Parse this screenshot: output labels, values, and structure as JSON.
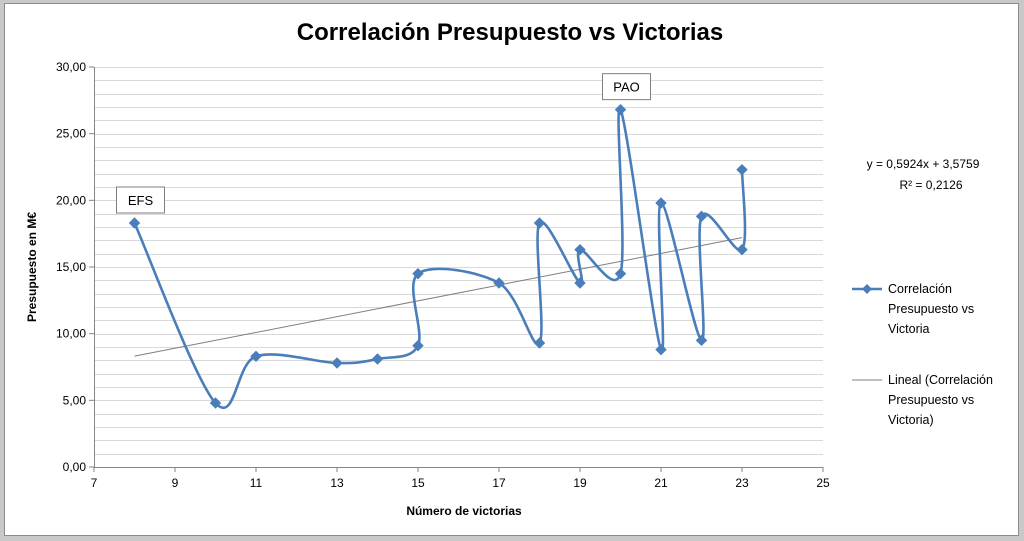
{
  "chart_data": {
    "type": "scatter",
    "title": "Correlación Presupuesto vs Victorias",
    "xlabel": "Número de victorias",
    "ylabel": "Presupuesto en M€",
    "xlim": [
      7,
      25
    ],
    "ylim": [
      0,
      30
    ],
    "x_ticks": [
      "7",
      "9",
      "11",
      "13",
      "15",
      "17",
      "19",
      "21",
      "23",
      "25"
    ],
    "y_ticks": [
      "0,00",
      "5,00",
      "10,00",
      "15,00",
      "20,00",
      "25,00",
      "30,00"
    ],
    "grid": "horizontal",
    "legend_position": "right",
    "series": [
      {
        "name": "Correlación Presupuesto vs Victoria",
        "legend_lines": [
          "Correlación",
          "Presupuesto vs",
          "Victoria"
        ],
        "color": "#4a7ebb",
        "marker": "diamond",
        "smoothed": true,
        "x": [
          8,
          10,
          11,
          13,
          14,
          15,
          15,
          17,
          18,
          18,
          19,
          19,
          20,
          20,
          21,
          21,
          22,
          22,
          23,
          23
        ],
        "y": [
          18.3,
          4.8,
          8.3,
          7.8,
          8.1,
          9.1,
          14.5,
          13.8,
          9.3,
          18.3,
          13.8,
          16.3,
          14.5,
          26.8,
          8.8,
          19.8,
          9.5,
          18.8,
          16.3,
          22.3
        ]
      },
      {
        "name": "Lineal (Correlación Presupuesto vs Victoria)",
        "legend_lines": [
          "Lineal (Correlación",
          "Presupuesto vs",
          "Victoria)"
        ],
        "color": "#7f7f7f",
        "type": "trendline",
        "slope": 0.5924,
        "intercept": 3.5759,
        "x_range": [
          8,
          23
        ]
      }
    ],
    "equation": {
      "line1": "y = 0,5924x + 3,5759",
      "line2": "R² = 0,2126"
    },
    "annotations": [
      {
        "text": "EFS",
        "x": 8,
        "y": 18.3
      },
      {
        "text": "PAO",
        "x": 20,
        "y": 26.8
      }
    ]
  }
}
